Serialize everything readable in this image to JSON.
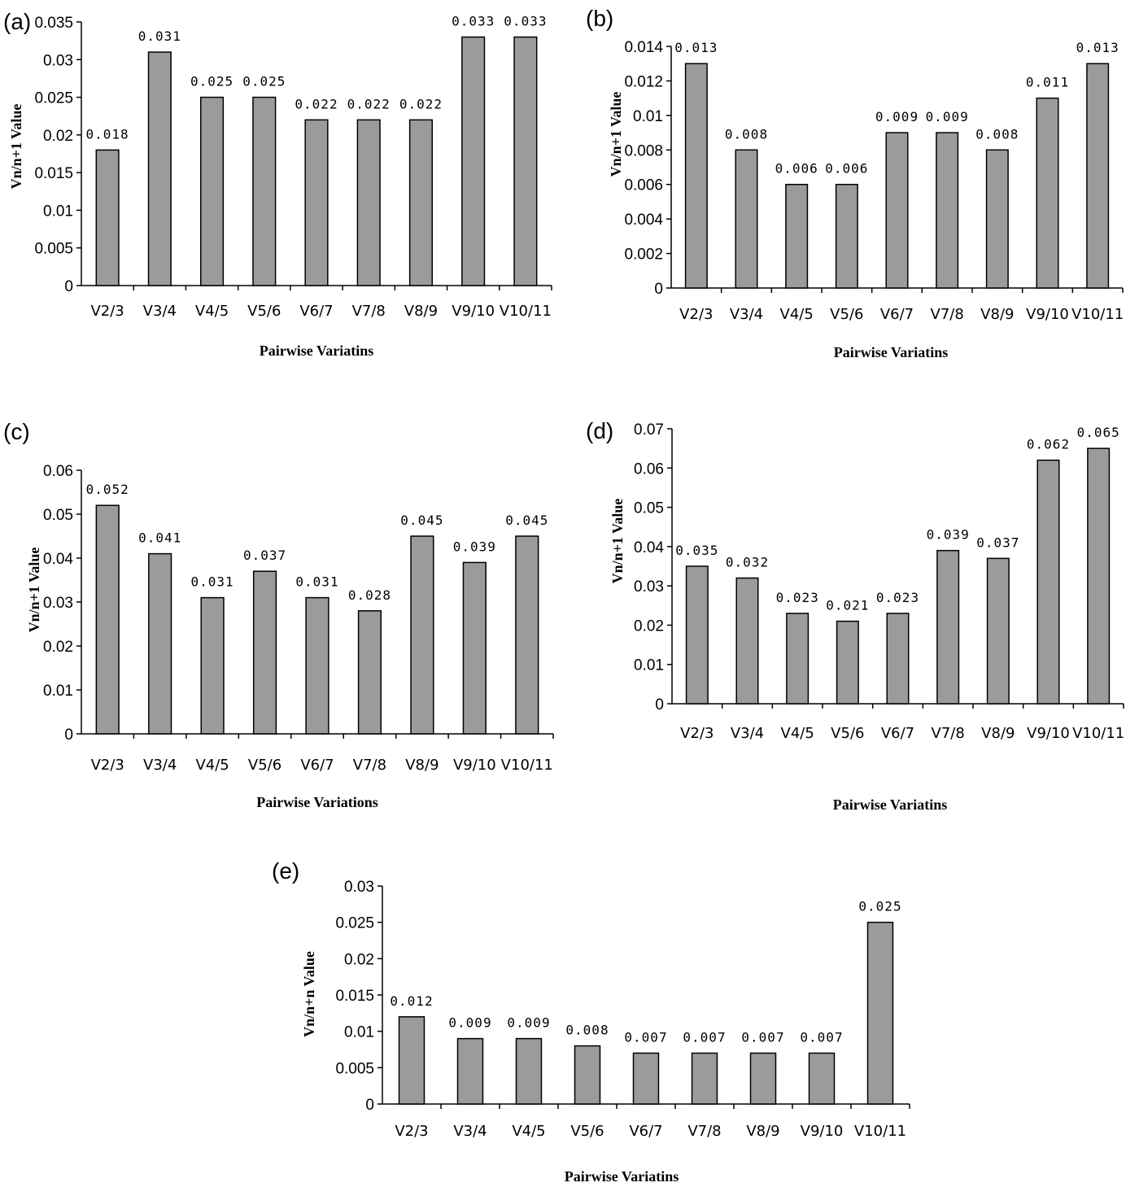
{
  "chart_data": [
    {
      "type": "bar",
      "panel_label": "(a)",
      "categories": [
        "V2/3",
        "V3/4",
        "V4/5",
        "V5/6",
        "V6/7",
        "V7/8",
        "V8/9",
        "V9/10",
        "V10/11"
      ],
      "values": [
        0.018,
        0.031,
        0.025,
        0.025,
        0.022,
        0.022,
        0.022,
        0.033,
        0.033
      ],
      "data_labels": [
        "0.018",
        "0.031",
        "0.025",
        "0.025",
        "0.022",
        "0.022",
        "0.022",
        "0.033",
        "0.033"
      ],
      "y_ticks": [
        "0",
        "0.005",
        "0.01",
        "0.015",
        "0.02",
        "0.025",
        "0.03",
        "0.035"
      ],
      "ylim": [
        0,
        0.035
      ],
      "xlabel": "Pairwise Variatins",
      "ylabel": "Vn/n+1 Value",
      "grid": false
    },
    {
      "type": "bar",
      "panel_label": "(b)",
      "categories": [
        "V2/3",
        "V3/4",
        "V4/5",
        "V5/6",
        "V6/7",
        "V7/8",
        "V8/9",
        "V9/10",
        "V10/11"
      ],
      "values": [
        0.013,
        0.008,
        0.006,
        0.006,
        0.009,
        0.009,
        0.008,
        0.011,
        0.013
      ],
      "data_labels": [
        "0.013",
        "0.008",
        "0.006",
        "0.006",
        "0.009",
        "0.009",
        "0.008",
        "0.011",
        "0.013"
      ],
      "y_ticks": [
        "0",
        "0.002",
        "0.004",
        "0.006",
        "0.008",
        "0.01",
        "0.012",
        "0.014"
      ],
      "ylim": [
        0,
        0.014
      ],
      "xlabel": "Pairwise Variatins",
      "ylabel": "Vn/n+1 Value",
      "grid": false
    },
    {
      "type": "bar",
      "panel_label": "(c)",
      "categories": [
        "V2/3",
        "V3/4",
        "V4/5",
        "V5/6",
        "V6/7",
        "V7/8",
        "V8/9",
        "V9/10",
        "V10/11"
      ],
      "values": [
        0.052,
        0.041,
        0.031,
        0.037,
        0.031,
        0.028,
        0.045,
        0.039,
        0.045
      ],
      "data_labels": [
        "0.052",
        "0.041",
        "0.031",
        "0.037",
        "0.031",
        "0.028",
        "0.045",
        "0.039",
        "0.045"
      ],
      "y_ticks": [
        "0",
        "0.01",
        "0.02",
        "0.03",
        "0.04",
        "0.05",
        "0.06"
      ],
      "ylim": [
        0,
        0.06
      ],
      "xlabel": "Pairwise Variations",
      "ylabel": "Vn/n+1 Value",
      "grid": false
    },
    {
      "type": "bar",
      "panel_label": "(d)",
      "categories": [
        "V2/3",
        "V3/4",
        "V4/5",
        "V5/6",
        "V6/7",
        "V7/8",
        "V8/9",
        "V9/10",
        "V10/11"
      ],
      "values": [
        0.035,
        0.032,
        0.023,
        0.021,
        0.023,
        0.039,
        0.037,
        0.062,
        0.065
      ],
      "data_labels": [
        "0.035",
        "0.032",
        "0.023",
        "0.021",
        "0.023",
        "0.039",
        "0.037",
        "0.062",
        "0.065"
      ],
      "y_ticks": [
        "0",
        "0.01",
        "0.02",
        "0.03",
        "0.04",
        "0.05",
        "0.06",
        "0.07"
      ],
      "ylim": [
        0,
        0.07
      ],
      "xlabel": "Pairwise Variatins",
      "ylabel": "Vn/n+1 Value",
      "grid": false
    },
    {
      "type": "bar",
      "panel_label": "(e)",
      "categories": [
        "V2/3",
        "V3/4",
        "V4/5",
        "V5/6",
        "V6/7",
        "V7/8",
        "V8/9",
        "V9/10",
        "V10/11"
      ],
      "values": [
        0.012,
        0.009,
        0.009,
        0.008,
        0.007,
        0.007,
        0.007,
        0.007,
        0.025
      ],
      "data_labels": [
        "0.012",
        "0.009",
        "0.009",
        "0.008",
        "0.007",
        "0.007",
        "0.007",
        "0.007",
        "0.025"
      ],
      "y_ticks": [
        "0",
        "0.005",
        "0.01",
        "0.015",
        "0.02",
        "0.025",
        "0.03"
      ],
      "ylim": [
        0,
        0.03
      ],
      "xlabel": "Pairwise Variatins",
      "ylabel": "Vn/n+n Value",
      "grid": false
    }
  ]
}
